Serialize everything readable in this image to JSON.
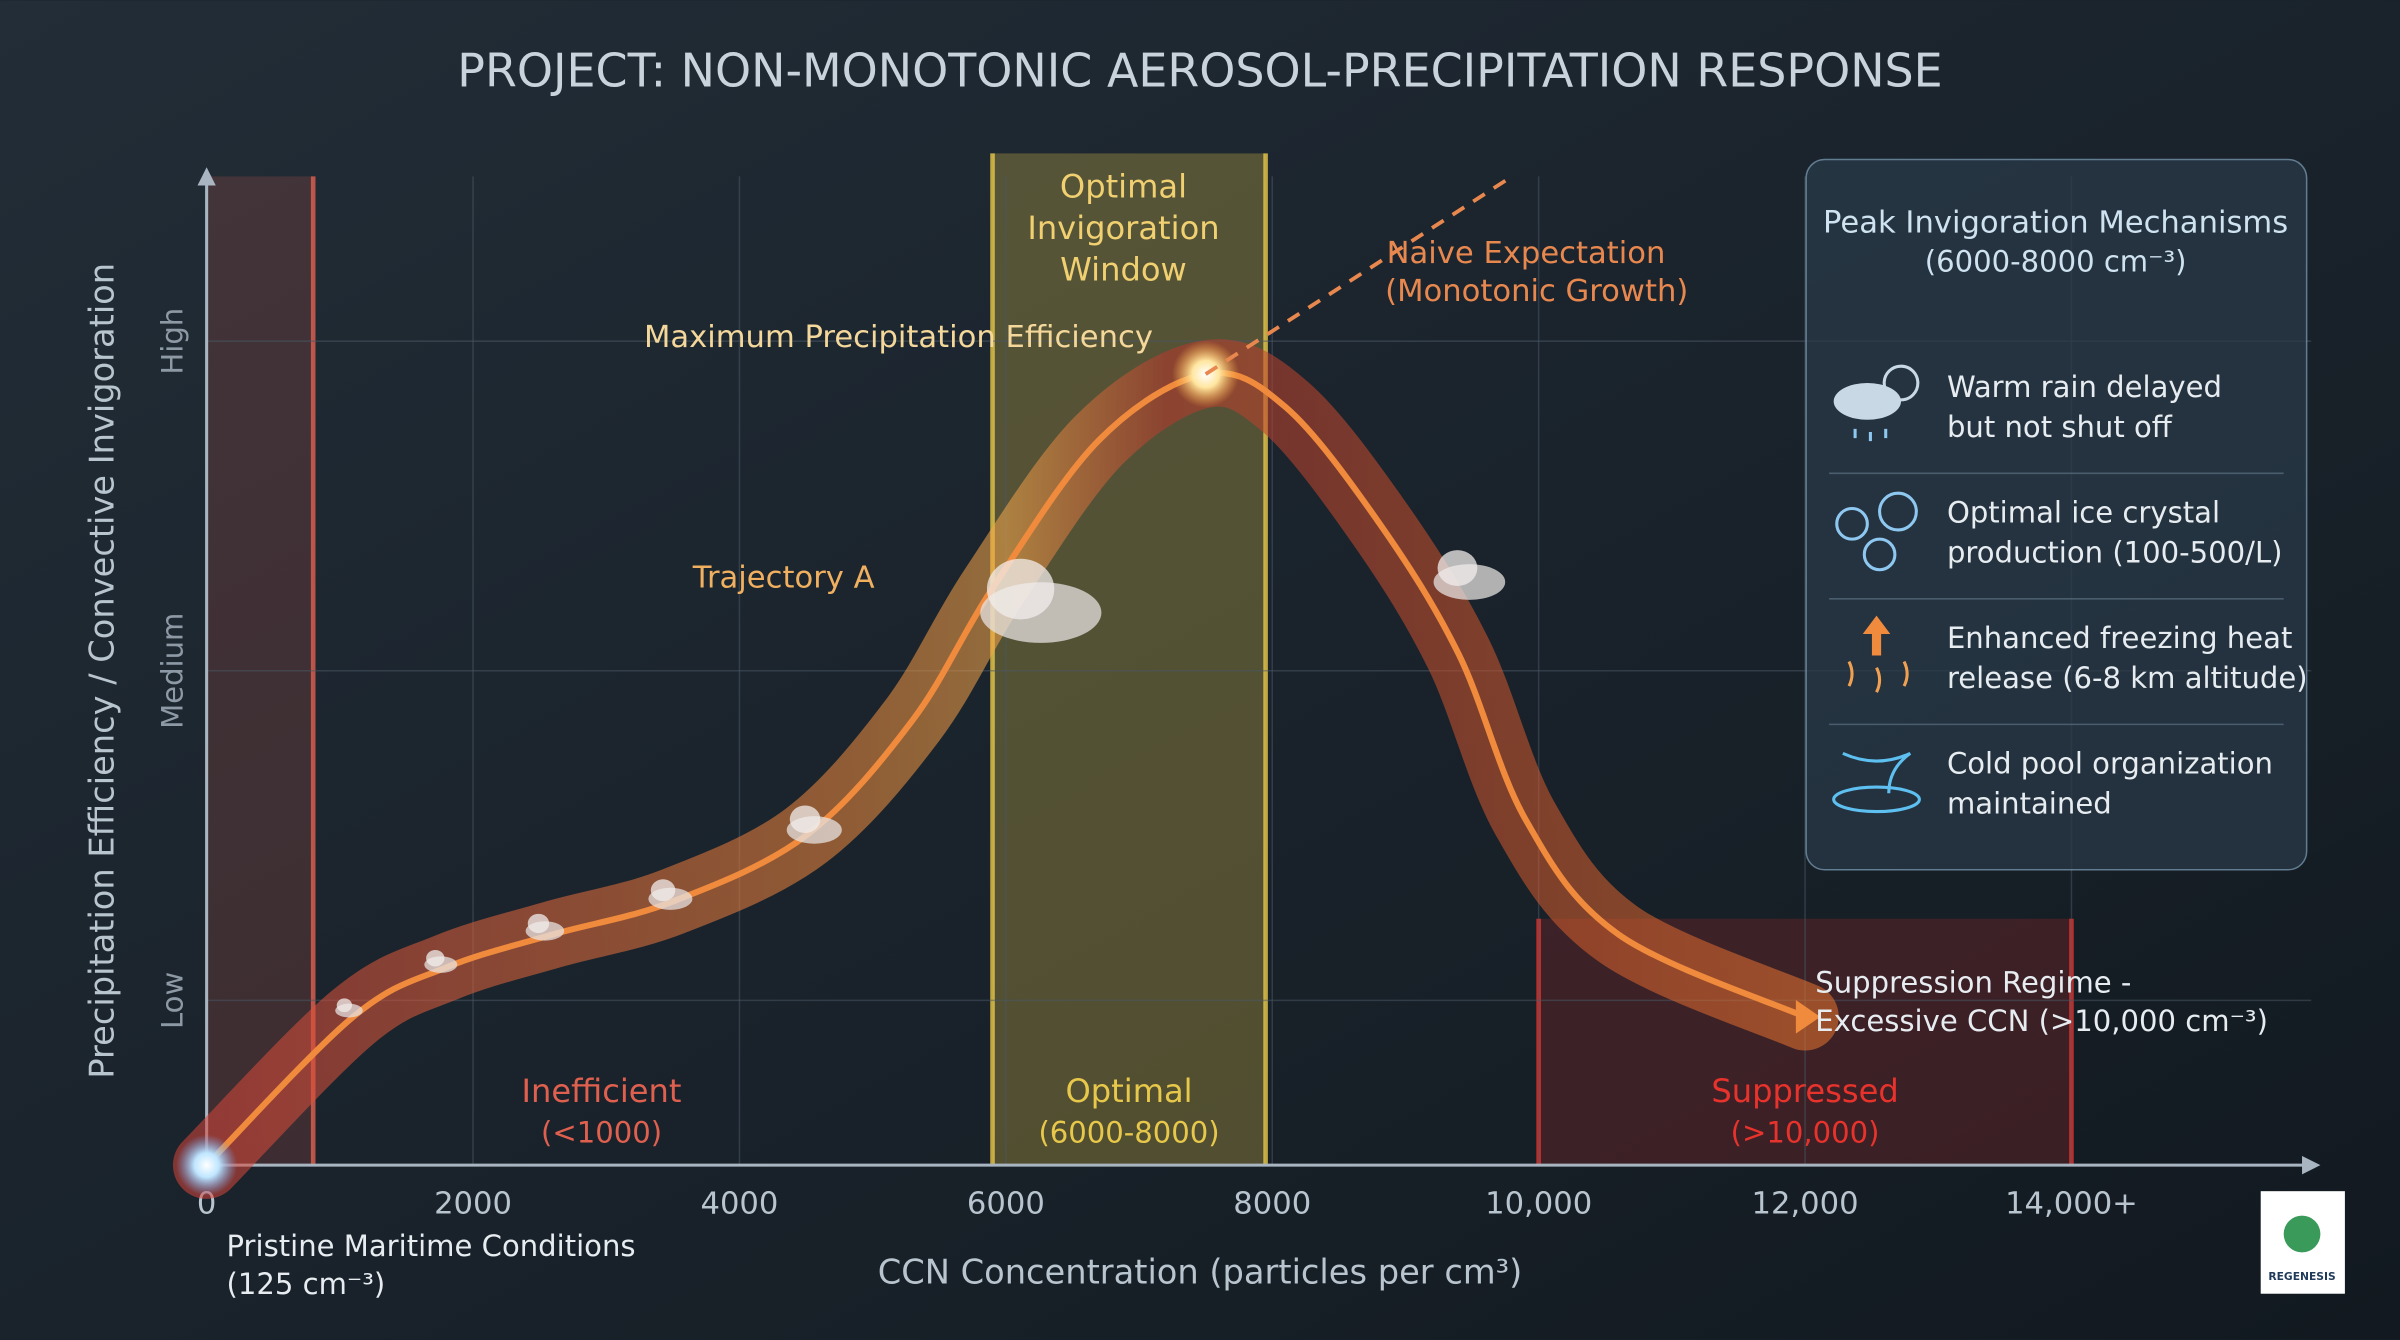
{
  "chart_data": {
    "type": "line",
    "title": "PROJECT: NON-MONOTONIC AEROSOL-PRECIPITATION RESPONSE",
    "x_label": "CCN Concentration (particles per cm³)",
    "y_label": "Precipitation Efficiency / Convective Invigoration",
    "xlim": [
      0,
      15800
    ],
    "ylim": [
      0,
      6
    ],
    "xticks": [
      0,
      2000,
      4000,
      6000,
      8000,
      {
        "value": 10000,
        "label": "10,000"
      },
      {
        "value": 12000,
        "label": "12,000"
      },
      {
        "value": 14000,
        "label": "14,000+"
      }
    ],
    "yticks": [
      {
        "value": 1,
        "label": "Low"
      },
      {
        "value": 3,
        "label": "Medium"
      },
      {
        "value": 5,
        "label": "High"
      }
    ],
    "grid": true,
    "series": [
      {
        "name": "Trajectory A",
        "color": "#f08a3c",
        "x": [
          0,
          1100,
          1800,
          2600,
          3500,
          4500,
          5300,
          5900,
          6700,
          7500,
          8100,
          8800,
          9400,
          9900,
          10600,
          12000
        ],
        "values": [
          0,
          0.9,
          1.2,
          1.4,
          1.6,
          2.0,
          2.7,
          3.5,
          4.4,
          4.8,
          4.6,
          3.9,
          3.1,
          2.1,
          1.4,
          0.9
        ]
      },
      {
        "name": "Naive Expectation",
        "note": "(Monotonic Growth)",
        "color": "#e8884f",
        "dashed": true,
        "x": [
          7500,
          9800
        ],
        "values": [
          4.8,
          6
        ]
      }
    ],
    "bands": [
      {
        "label": "Inefficient",
        "range_label": "(<1000)",
        "x": [
          0,
          800
        ],
        "color": "#e0604f"
      },
      {
        "label": "Optimal",
        "range_label": "(6000-8000)",
        "x": [
          5900,
          7950
        ],
        "color": "#e8c84a"
      },
      {
        "label": "Suppressed",
        "range_label": "(>10,000)",
        "x": [
          10000,
          14000
        ],
        "color": "#e8322c"
      }
    ],
    "annotations": {
      "window": [
        "Optimal",
        "Invigoration",
        "Window"
      ],
      "peak": "Maximum Precipitation Efficiency",
      "suppression": [
        "Suppression Regime -",
        "Excessive CCN (>10,000 cm⁻³)"
      ],
      "origin": [
        "Pristine Maritime Conditions",
        "(125 cm⁻³)"
      ]
    },
    "panel": {
      "title": "Peak Invigoration Mechanisms",
      "subtitle": "(6000-8000 cm⁻³)",
      "items": [
        [
          "Warm rain delayed",
          "but not shut off"
        ],
        [
          "Optimal ice crystal",
          "production (100-500/L)"
        ],
        [
          "Enhanced freezing heat",
          "release (6-8 km altitude)"
        ],
        [
          "Cold pool organization",
          "maintained"
        ]
      ]
    },
    "logo": "REGENESIS"
  }
}
